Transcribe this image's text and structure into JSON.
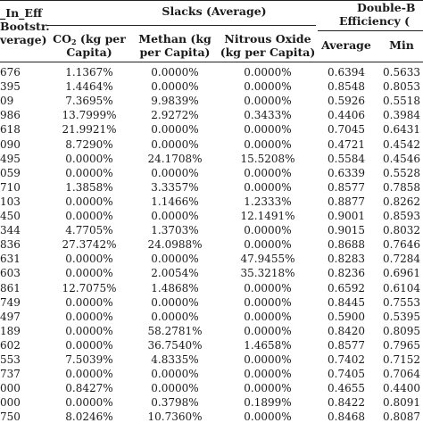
{
  "table": {
    "header": {
      "col0_line1": "_In_Eff",
      "col0_line2": "Bootstr.",
      "col0_line3": "verage)",
      "slacks_group": "Slacks (Average)",
      "double_line1": "Double-B",
      "double_line2": "Efficiency (",
      "co2_pre": "CO",
      "co2_sub": "2",
      "co2_post": " (kg per",
      "co2_line2": "Capita)",
      "methan_line1": "Methan (kg",
      "methan_line2": "per Capita)",
      "nitrous_line1": "Nitrous Oxide",
      "nitrous_line2": "(kg per Capita)",
      "average": "Average",
      "min": "Min"
    },
    "rows": [
      [
        "676",
        "1.1367%",
        "0.0000%",
        "0.0000%",
        "0.6394",
        "0.5633"
      ],
      [
        "395",
        "1.4464%",
        "0.0000%",
        "0.0000%",
        "0.8548",
        "0.8053"
      ],
      [
        "09",
        "7.3695%",
        "9.9839%",
        "0.0000%",
        "0.5926",
        "0.5518"
      ],
      [
        "986",
        "13.7999%",
        "2.9272%",
        "0.3433%",
        "0.4406",
        "0.3984"
      ],
      [
        "618",
        "21.9921%",
        "0.0000%",
        "0.0000%",
        "0.7045",
        "0.6431"
      ],
      [
        "090",
        "8.7290%",
        "0.0000%",
        "0.0000%",
        "0.4721",
        "0.4542"
      ],
      [
        "495",
        "0.0000%",
        "24.1708%",
        "15.5208%",
        "0.5584",
        "0.4546"
      ],
      [
        "059",
        "0.0000%",
        "0.0000%",
        "0.0000%",
        "0.6339",
        "0.5528"
      ],
      [
        "710",
        "1.3858%",
        "3.3357%",
        "0.0000%",
        "0.8577",
        "0.7858"
      ],
      [
        "103",
        "0.0000%",
        "1.1466%",
        "1.2333%",
        "0.8877",
        "0.8262"
      ],
      [
        "450",
        "0.0000%",
        "0.0000%",
        "12.1491%",
        "0.9001",
        "0.8593"
      ],
      [
        "344",
        "4.7705%",
        "1.3703%",
        "0.0000%",
        "0.9015",
        "0.8032"
      ],
      [
        "836",
        "27.3742%",
        "24.0988%",
        "0.0000%",
        "0.8688",
        "0.7646"
      ],
      [
        "631",
        "0.0000%",
        "0.0000%",
        "47.9455%",
        "0.8283",
        "0.7284"
      ],
      [
        "603",
        "0.0000%",
        "2.0054%",
        "35.3218%",
        "0.8236",
        "0.6961"
      ],
      [
        "861",
        "12.7075%",
        "1.4868%",
        "0.0000%",
        "0.6592",
        "0.6104"
      ],
      [
        "749",
        "0.0000%",
        "0.0000%",
        "0.0000%",
        "0.8445",
        "0.7553"
      ],
      [
        "497",
        "0.0000%",
        "0.0000%",
        "0.0000%",
        "0.5900",
        "0.5395"
      ],
      [
        "189",
        "0.0000%",
        "58.2781%",
        "0.0000%",
        "0.8420",
        "0.8095"
      ],
      [
        "602",
        "0.0000%",
        "36.7540%",
        "1.4658%",
        "0.8577",
        "0.7965"
      ],
      [
        "553",
        "7.5039%",
        "4.8335%",
        "0.0000%",
        "0.7402",
        "0.7152"
      ],
      [
        "737",
        "0.0000%",
        "0.0000%",
        "0.0000%",
        "0.7405",
        "0.7064"
      ],
      [
        "000",
        "0.8427%",
        "0.0000%",
        "0.0000%",
        "0.4655",
        "0.4400"
      ],
      [
        "000",
        "0.0000%",
        "0.3798%",
        "0.1899%",
        "0.8422",
        "0.8091"
      ],
      [
        "750",
        "8.0246%",
        "10.7360%",
        "0.0000%",
        "0.8468",
        "0.8087"
      ]
    ]
  }
}
